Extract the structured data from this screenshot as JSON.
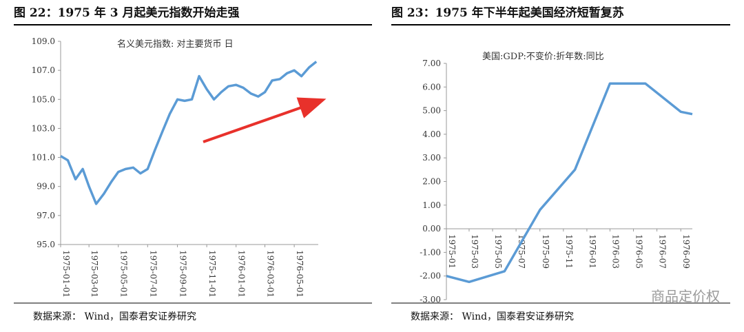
{
  "chart_data": [
    {
      "type": "line",
      "title": "图 22：1975 年 3 月起美元指数开始走强",
      "x": [
        "1975-01-01",
        "1975-01-16",
        "1975-02-01",
        "1975-02-16",
        "1975-03-01",
        "1975-03-16",
        "1975-04-01",
        "1975-04-16",
        "1975-05-01",
        "1975-05-16",
        "1975-06-01",
        "1975-06-16",
        "1975-07-01",
        "1975-07-16",
        "1975-08-01",
        "1975-08-16",
        "1975-09-01",
        "1975-09-16",
        "1975-10-01",
        "1975-10-16",
        "1975-11-01",
        "1975-11-16",
        "1975-12-01",
        "1975-12-16",
        "1976-01-01",
        "1976-01-16",
        "1976-02-01",
        "1976-02-16",
        "1976-03-01",
        "1976-03-16",
        "1976-04-01",
        "1976-04-16",
        "1976-05-01",
        "1976-05-16",
        "1976-06-01",
        "1976-06-16"
      ],
      "series": [
        {
          "name": "名义美元指数: 对主要货币 日",
          "color": "#5b9bd5",
          "values": [
            101.1,
            100.8,
            99.5,
            100.2,
            99.0,
            97.8,
            98.5,
            99.3,
            100.0,
            100.2,
            100.3,
            99.9,
            100.2,
            101.5,
            102.8,
            104.0,
            105.0,
            104.9,
            105.0,
            106.6,
            105.7,
            105.0,
            105.5,
            105.9,
            106.0,
            105.8,
            105.4,
            105.2,
            105.5,
            106.3,
            106.4,
            106.8,
            107.0,
            106.6,
            107.2,
            107.6
          ]
        }
      ],
      "xlim": [
        "1975-01-01",
        "1976-06-20"
      ],
      "xticks": [
        "1975-01-01",
        "1975-03-01",
        "1975-05-01",
        "1975-07-01",
        "1975-09-01",
        "1975-11-01",
        "1976-01-01",
        "1976-03-01",
        "1976-05-01"
      ],
      "ylim": [
        95,
        109
      ],
      "yticks": [
        {
          "value": 95,
          "label": "95.0"
        },
        {
          "value": 97,
          "label": "97.0"
        },
        {
          "value": 99,
          "label": "99.0"
        },
        {
          "value": 101,
          "label": "101.0"
        },
        {
          "value": 103,
          "label": "103.0"
        },
        {
          "value": 105,
          "label": "105.0"
        },
        {
          "value": 107,
          "label": "107.0"
        },
        {
          "value": 109,
          "label": "109.0"
        }
      ],
      "source": "数据来源：   Wind，国泰君安证券研究"
    },
    {
      "type": "line",
      "title": "图 23：1975 年下半年起美国经济短暂复苏",
      "x": [
        "1975-01",
        "1975-03",
        "1975-06",
        "1975-09",
        "1975-12",
        "1976-03",
        "1976-06",
        "1976-09",
        "1976-10"
      ],
      "series": [
        {
          "name": "美国:GDP:不变价:折年数:同比",
          "color": "#5b9bd5",
          "values": [
            -2.0,
            -2.25,
            -1.8,
            0.8,
            2.5,
            6.15,
            6.15,
            4.95,
            4.85
          ]
        }
      ],
      "xlim": [
        "1975-01",
        "1976-10"
      ],
      "xticks": [
        "1975-01",
        "1975-03",
        "1975-05",
        "1975-07",
        "1975-09",
        "1975-11",
        "1976-01",
        "1976-03",
        "1976-05",
        "1976-07",
        "1976-09"
      ],
      "ylim": [
        -3,
        7
      ],
      "yticks": [
        {
          "value": -3,
          "label": "-3.00"
        },
        {
          "value": -2,
          "label": "-2.00"
        },
        {
          "value": -1,
          "label": "-1.00"
        },
        {
          "value": 0,
          "label": "0.00"
        },
        {
          "value": 1,
          "label": "1.00"
        },
        {
          "value": 2,
          "label": "2.00"
        },
        {
          "value": 3,
          "label": "3.00"
        },
        {
          "value": 4,
          "label": "4.00"
        },
        {
          "value": 5,
          "label": "5.00"
        },
        {
          "value": 6,
          "label": "6.00"
        },
        {
          "value": 7,
          "label": "7.00"
        }
      ],
      "source": "数据来源：   Wind，国泰君安证券研究"
    }
  ],
  "watermark": "商品定价权"
}
